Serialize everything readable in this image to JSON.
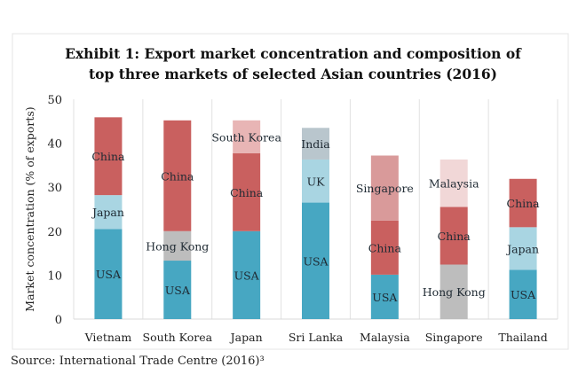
{
  "chart_data": {
    "type": "bar",
    "stacked": true,
    "title": [
      "Exhibit 1: Export market concentration and composition of",
      "top three markets of selected Asian countries (2016)"
    ],
    "xlabel": "",
    "ylabel": "Market concentration (% of exports)",
    "ylim": [
      0,
      50
    ],
    "yticks": [
      0,
      10,
      20,
      30,
      40,
      50
    ],
    "grid": "vertical separators",
    "categories": [
      "Vietnam",
      "South Korea",
      "Japan",
      "Sri Lanka",
      "Malaysia",
      "Singapore",
      "Thailand"
    ],
    "stacks": [
      [
        {
          "name": "USA",
          "value": 20.5
        },
        {
          "name": "Japan",
          "value": 7.7
        },
        {
          "name": "China",
          "value": 17.7
        }
      ],
      [
        {
          "name": "USA",
          "value": 13.3
        },
        {
          "name": "Hong Kong",
          "value": 6.7
        },
        {
          "name": "China",
          "value": 25.2
        }
      ],
      [
        {
          "name": "USA",
          "value": 20.0
        },
        {
          "name": "China",
          "value": 17.7
        },
        {
          "name": "South Korea",
          "value": 7.5
        }
      ],
      [
        {
          "name": "USA",
          "value": 26.5
        },
        {
          "name": "UK",
          "value": 9.8
        },
        {
          "name": "India",
          "value": 7.2
        }
      ],
      [
        {
          "name": "USA",
          "value": 10.1
        },
        {
          "name": "China",
          "value": 12.3
        },
        {
          "name": "Singapore",
          "value": 14.8
        }
      ],
      [
        {
          "name": "Hong Kong",
          "value": 12.4
        },
        {
          "name": "China",
          "value": 13.1
        },
        {
          "name": "Malaysia",
          "value": 10.8
        }
      ],
      [
        {
          "name": "USA",
          "value": 11.2
        },
        {
          "name": "Japan",
          "value": 9.7
        },
        {
          "name": "China",
          "value": 11.0
        }
      ]
    ],
    "colors": {
      "USA": "#47a7c2",
      "Japan": "#a9d5e2",
      "UK": "#a9d5e2",
      "China": "#c9605f",
      "Hong Kong": "#bdbdbd",
      "India": "#b9c6cd",
      "South Korea": "#e8b5b5",
      "Singapore": "#d99a9a",
      "Malaysia": "#f1d7d7"
    }
  },
  "source": "Source: International Trade Centre (2016)³"
}
